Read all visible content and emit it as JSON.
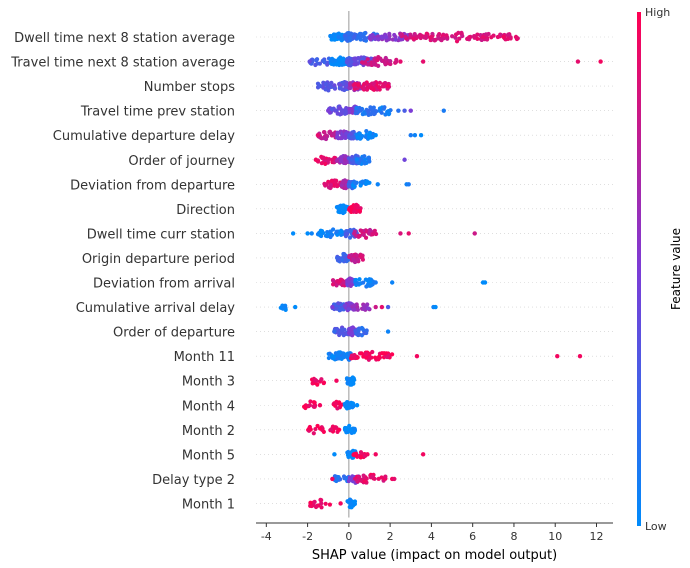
{
  "chart_data": {
    "type": "scatter",
    "subtype": "shap-beeswarm-summary",
    "xlabel": "SHAP value (impact on model output)",
    "xlim": [
      -4.5,
      12.8
    ],
    "xticks": [
      -4,
      -2,
      0,
      2,
      4,
      6,
      8,
      10,
      12
    ],
    "colorbar": {
      "label": "Feature value",
      "high": "High",
      "low": "Low",
      "low_color": "#008bfb",
      "high_color": "#ff0052"
    },
    "grid": false,
    "zero_line": true,
    "features": [
      {
        "name": "Dwell time next 8 station average",
        "segments": [
          [
            -0.9,
            -0.2,
            0.0,
            40
          ],
          [
            -0.2,
            0.2,
            0.2,
            55
          ],
          [
            0.2,
            1.5,
            0.2,
            45
          ],
          [
            1.0,
            3.0,
            0.55,
            45
          ],
          [
            2.5,
            8.2,
            0.85,
            95
          ]
        ],
        "points": [
          [
            -0.6,
            0.0
          ],
          [
            -0.5,
            0.1
          ],
          [
            1.8,
            0.5
          ],
          [
            4.0,
            0.9
          ],
          [
            6.5,
            0.9
          ],
          [
            7.5,
            0.95
          ],
          [
            8.1,
            0.9
          ]
        ]
      },
      {
        "name": "Travel time next 8 station average",
        "segments": [
          [
            -1.9,
            -0.8,
            0.3,
            20
          ],
          [
            -0.9,
            -0.1,
            0.0,
            50
          ],
          [
            -0.1,
            0.2,
            0.3,
            40
          ],
          [
            0.1,
            1.2,
            0.4,
            45
          ],
          [
            0.6,
            2.3,
            0.8,
            40
          ]
        ],
        "points": [
          [
            -1.9,
            0.4
          ],
          [
            3.6,
            0.9
          ],
          [
            11.1,
            0.9
          ],
          [
            12.2,
            0.95
          ],
          [
            2.5,
            0.9
          ]
        ]
      },
      {
        "name": "Number stops",
        "segments": [
          [
            -1.5,
            -0.5,
            0.35,
            25
          ],
          [
            -0.5,
            0.0,
            0.35,
            30
          ],
          [
            0.0,
            0.6,
            0.6,
            25
          ],
          [
            0.2,
            2.0,
            0.88,
            60
          ]
        ],
        "points": [
          [
            -1.4,
            0.3
          ],
          [
            1.9,
            0.95
          ]
        ]
      },
      {
        "name": "Travel time prev station",
        "segments": [
          [
            -1.0,
            0.0,
            0.4,
            35
          ],
          [
            0.0,
            0.5,
            0.5,
            30
          ],
          [
            0.3,
            1.5,
            0.15,
            30
          ],
          [
            1.5,
            2.1,
            0.1,
            12
          ]
        ],
        "points": [
          [
            2.4,
            0.15
          ],
          [
            2.7,
            0.3
          ],
          [
            3.0,
            0.5
          ],
          [
            4.6,
            0.1
          ],
          [
            -1.0,
            0.5
          ]
        ]
      },
      {
        "name": "Cumulative departure delay",
        "segments": [
          [
            -1.5,
            -0.6,
            0.75,
            22
          ],
          [
            -0.6,
            0.0,
            0.5,
            30
          ],
          [
            0.0,
            0.5,
            0.3,
            30
          ],
          [
            0.3,
            1.2,
            0.05,
            22
          ]
        ],
        "points": [
          [
            1.3,
            0.0
          ],
          [
            3.2,
            0.05
          ],
          [
            3.5,
            0.0
          ],
          [
            3.0,
            0.1
          ],
          [
            -1.5,
            0.9
          ]
        ]
      },
      {
        "name": "Order of journey",
        "segments": [
          [
            -1.6,
            -0.6,
            0.9,
            25
          ],
          [
            -0.6,
            0.0,
            0.6,
            30
          ],
          [
            0.0,
            0.6,
            0.3,
            30
          ],
          [
            0.3,
            1.0,
            0.1,
            20
          ]
        ],
        "points": [
          [
            2.7,
            0.45
          ],
          [
            -1.6,
            0.95
          ]
        ]
      },
      {
        "name": "Deviation from departure",
        "segments": [
          [
            -1.2,
            -0.4,
            0.9,
            25
          ],
          [
            -0.4,
            0.0,
            0.7,
            30
          ],
          [
            0.0,
            0.3,
            0.2,
            25
          ],
          [
            0.2,
            1.0,
            0.05,
            20
          ]
        ],
        "points": [
          [
            1.4,
            0.05
          ],
          [
            2.8,
            0.05
          ],
          [
            2.9,
            0.1
          ]
        ]
      },
      {
        "name": "Direction",
        "segments": [
          [
            -0.6,
            0.0,
            0.0,
            30
          ],
          [
            0.0,
            0.6,
            0.95,
            30
          ]
        ],
        "points": []
      },
      {
        "name": "Dwell time curr station",
        "segments": [
          [
            -1.5,
            -0.2,
            0.05,
            30
          ],
          [
            -0.2,
            0.4,
            0.3,
            35
          ],
          [
            0.2,
            1.4,
            0.8,
            30
          ]
        ],
        "points": [
          [
            -2.7,
            0.0
          ],
          [
            -2.0,
            0.0
          ],
          [
            -1.8,
            0.05
          ],
          [
            2.5,
            0.85
          ],
          [
            2.9,
            0.9
          ],
          [
            6.1,
            0.8
          ]
        ]
      },
      {
        "name": "Origin departure period",
        "segments": [
          [
            -0.6,
            0.0,
            0.25,
            25
          ],
          [
            0.0,
            0.7,
            0.8,
            30
          ]
        ],
        "points": []
      },
      {
        "name": "Deviation from arrival",
        "segments": [
          [
            -0.8,
            -0.1,
            0.85,
            25
          ],
          [
            -0.1,
            0.3,
            0.5,
            30
          ],
          [
            0.3,
            1.2,
            0.05,
            25
          ]
        ],
        "points": [
          [
            2.1,
            0.05
          ],
          [
            6.5,
            0.0
          ],
          [
            6.6,
            0.0
          ],
          [
            1.3,
            0.1
          ]
        ]
      },
      {
        "name": "Cumulative arrival delay",
        "segments": [
          [
            -3.3,
            -3.0,
            0.0,
            12
          ],
          [
            -0.8,
            -0.2,
            0.3,
            25
          ],
          [
            -0.2,
            0.2,
            0.5,
            30
          ],
          [
            0.2,
            1.0,
            0.6,
            25
          ]
        ],
        "points": [
          [
            -2.6,
            0.0
          ],
          [
            -0.8,
            0.5
          ],
          [
            1.3,
            0.8
          ],
          [
            1.6,
            0.9
          ],
          [
            1.9,
            0.3
          ],
          [
            4.1,
            0.05
          ],
          [
            4.2,
            0.0
          ]
        ]
      },
      {
        "name": "Order of departure",
        "segments": [
          [
            -0.7,
            0.0,
            0.35,
            25
          ],
          [
            0.0,
            0.4,
            0.5,
            30
          ],
          [
            0.3,
            0.9,
            0.2,
            20
          ]
        ],
        "points": [
          [
            1.9,
            0.05
          ],
          [
            -0.7,
            0.2
          ]
        ]
      },
      {
        "name": "Month 11",
        "segments": [
          [
            -1.0,
            -0.1,
            0.05,
            30
          ],
          [
            -0.1,
            0.1,
            0.1,
            20
          ],
          [
            0.1,
            2.1,
            0.95,
            50
          ]
        ],
        "points": [
          [
            3.3,
            0.95
          ],
          [
            10.1,
            0.95
          ],
          [
            11.2,
            0.95
          ],
          [
            -0.8,
            0.0
          ]
        ]
      },
      {
        "name": "Month 3",
        "segments": [
          [
            -1.8,
            -1.2,
            0.95,
            12
          ],
          [
            -0.1,
            0.3,
            0.0,
            25
          ]
        ],
        "points": [
          [
            -0.6,
            0.95
          ],
          [
            0.2,
            0.0
          ]
        ]
      },
      {
        "name": "Month 4",
        "segments": [
          [
            -2.2,
            -1.6,
            0.95,
            14
          ],
          [
            -0.8,
            -0.3,
            0.95,
            10
          ],
          [
            -0.2,
            0.3,
            0.0,
            25
          ]
        ],
        "points": [
          [
            -1.4,
            0.95
          ],
          [
            0.4,
            0.0
          ]
        ]
      },
      {
        "name": "Month 2",
        "segments": [
          [
            -2.0,
            -1.2,
            0.95,
            14
          ],
          [
            -0.9,
            -0.4,
            0.95,
            10
          ],
          [
            -0.2,
            0.3,
            0.0,
            25
          ]
        ],
        "points": [
          [
            0.1,
            0.0
          ]
        ]
      },
      {
        "name": "Month 5",
        "segments": [
          [
            -0.1,
            0.4,
            0.0,
            22
          ],
          [
            0.2,
            0.8,
            0.95,
            15
          ]
        ],
        "points": [
          [
            -0.7,
            0.0
          ],
          [
            0.9,
            0.95
          ],
          [
            1.3,
            0.95
          ],
          [
            3.6,
            0.95
          ]
        ]
      },
      {
        "name": "Delay type 2",
        "segments": [
          [
            -0.7,
            0.0,
            0.15,
            22
          ],
          [
            0.0,
            0.5,
            0.5,
            25
          ],
          [
            0.3,
            1.8,
            0.9,
            35
          ]
        ],
        "points": [
          [
            2.1,
            0.95
          ],
          [
            2.2,
            0.9
          ],
          [
            -0.8,
            0.95
          ]
        ]
      },
      {
        "name": "Month 1",
        "segments": [
          [
            -1.9,
            -0.9,
            0.95,
            18
          ],
          [
            -0.1,
            0.3,
            0.0,
            25
          ]
        ],
        "points": [
          [
            -0.4,
            0.95
          ]
        ]
      }
    ]
  }
}
